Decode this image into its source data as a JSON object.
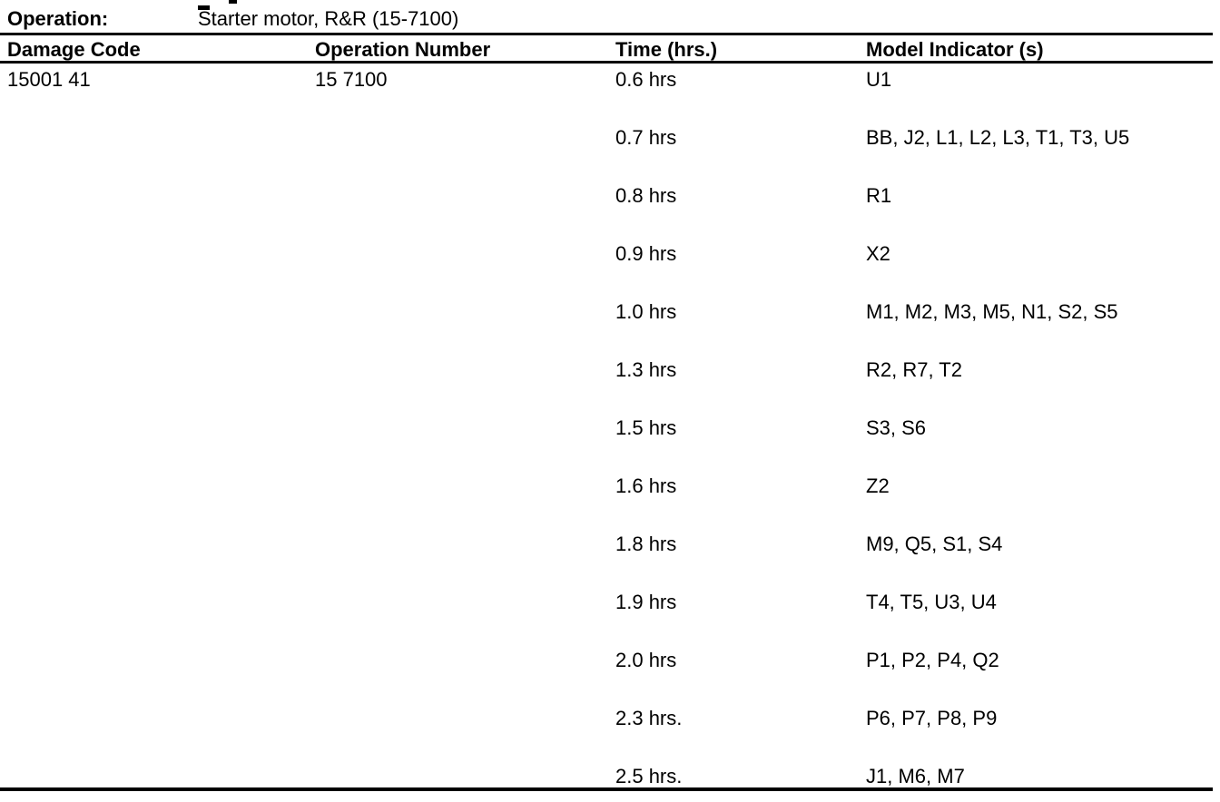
{
  "page": {
    "background": "#ffffff",
    "text_color": "#000000"
  },
  "operation_header": {
    "label": "Operation:",
    "value": "Starter motor, R&R (15-7100)"
  },
  "table": {
    "headers": {
      "damage_code": "Damage Code",
      "operation_number": "Operation Number",
      "time": "Time (hrs.)",
      "model_indicators": "Model Indicator (s)"
    },
    "rows": [
      {
        "damage_code": "15001 41",
        "operation_number": "15 7100",
        "time": "0.6 hrs",
        "models": "U1"
      },
      {
        "damage_code": "",
        "operation_number": "",
        "time": "0.7 hrs",
        "models": "BB, J2, L1, L2, L3, T1, T3, U5"
      },
      {
        "damage_code": "",
        "operation_number": "",
        "time": "0.8 hrs",
        "models": "R1"
      },
      {
        "damage_code": "",
        "operation_number": "",
        "time": "0.9 hrs",
        "models": "X2"
      },
      {
        "damage_code": "",
        "operation_number": "",
        "time": "1.0 hrs",
        "models": "M1, M2, M3, M5, N1, S2, S5"
      },
      {
        "damage_code": "",
        "operation_number": "",
        "time": "1.3 hrs",
        "models": "R2, R7, T2"
      },
      {
        "damage_code": "",
        "operation_number": "",
        "time": "1.5 hrs",
        "models": "S3, S6"
      },
      {
        "damage_code": "",
        "operation_number": "",
        "time": "1.6 hrs",
        "models": "Z2"
      },
      {
        "damage_code": "",
        "operation_number": "",
        "time": "1.8 hrs",
        "models": "M9, Q5, S1, S4"
      },
      {
        "damage_code": "",
        "operation_number": "",
        "time": "1.9 hrs",
        "models": "T4, T5, U3, U4"
      },
      {
        "damage_code": "",
        "operation_number": "",
        "time": "2.0 hrs",
        "models": "P1, P2, P4, Q2"
      },
      {
        "damage_code": "",
        "operation_number": "",
        "time": "2.3 hrs.",
        "models": "P6, P7, P8, P9"
      },
      {
        "damage_code": "",
        "operation_number": "",
        "time": "2.5 hrs.",
        "models": "J1, M6, M7"
      }
    ]
  }
}
